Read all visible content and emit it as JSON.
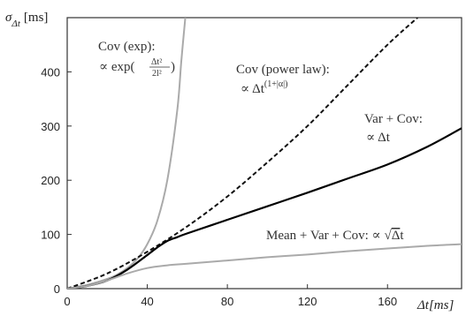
{
  "chart_data": {
    "type": "line",
    "ylabel_symbol": "σ",
    "ylabel_sub": "Δt",
    "ylabel_unit": "[ms]",
    "xlabel": "Δt[ms]",
    "xlim": [
      0,
      197
    ],
    "ylim": [
      0,
      500
    ],
    "xticks": [
      0,
      40,
      80,
      120,
      160
    ],
    "yticks": [
      0,
      100,
      200,
      300,
      400
    ],
    "grid": false,
    "series": [
      {
        "style": "solid",
        "color": "#aaaaaa",
        "x": [
          0,
          10,
          20,
          25,
          30,
          35,
          40,
          45,
          50,
          55,
          57,
          59
        ],
        "y": [
          0,
          7,
          18,
          26,
          38,
          55,
          82,
          125,
          200,
          330,
          420,
          500
        ]
      },
      {
        "style": "dashed",
        "color": "#111111",
        "x": [
          0,
          20,
          40,
          60,
          80,
          100,
          120,
          140,
          160,
          175
        ],
        "y": [
          0,
          28,
          68,
          115,
          170,
          233,
          300,
          375,
          450,
          500
        ]
      },
      {
        "style": "solid",
        "color": "#000000",
        "x": [
          0,
          10,
          20,
          30,
          40,
          45,
          50,
          55,
          60,
          80,
          100,
          120,
          140,
          160,
          180,
          197
        ],
        "y": [
          0,
          5,
          15,
          35,
          62,
          76,
          88,
          95,
          102,
          127,
          152,
          177,
          203,
          229,
          262,
          296
        ]
      },
      {
        "style": "solid",
        "color": "#aaaaaa",
        "x": [
          0,
          10,
          20,
          30,
          40,
          50,
          60,
          80,
          100,
          120,
          140,
          160,
          180,
          197
        ],
        "y": [
          0,
          5,
          15,
          28,
          38,
          43,
          46,
          52,
          58,
          63,
          69,
          74,
          79,
          82
        ]
      }
    ],
    "annotations": [
      {
        "line1": "Cov (exp):",
        "line2_prefix": "∝ exp(",
        "frac_num": "Δt²",
        "frac_den": "2l²",
        "line2_suffix": ")"
      },
      {
        "line1": "Cov (power law):",
        "line2_prefix": "∝ Δt",
        "superscript": "(1+|α|)"
      },
      {
        "line1": "Var + Cov:",
        "line2_prefix": "∝ Δt"
      },
      {
        "line1_prefix": "Mean + Var + Cov: ∝ ",
        "sqrt_sign": "√",
        "sqrt_body": "Δ",
        "line1_suffix": "t"
      }
    ]
  }
}
